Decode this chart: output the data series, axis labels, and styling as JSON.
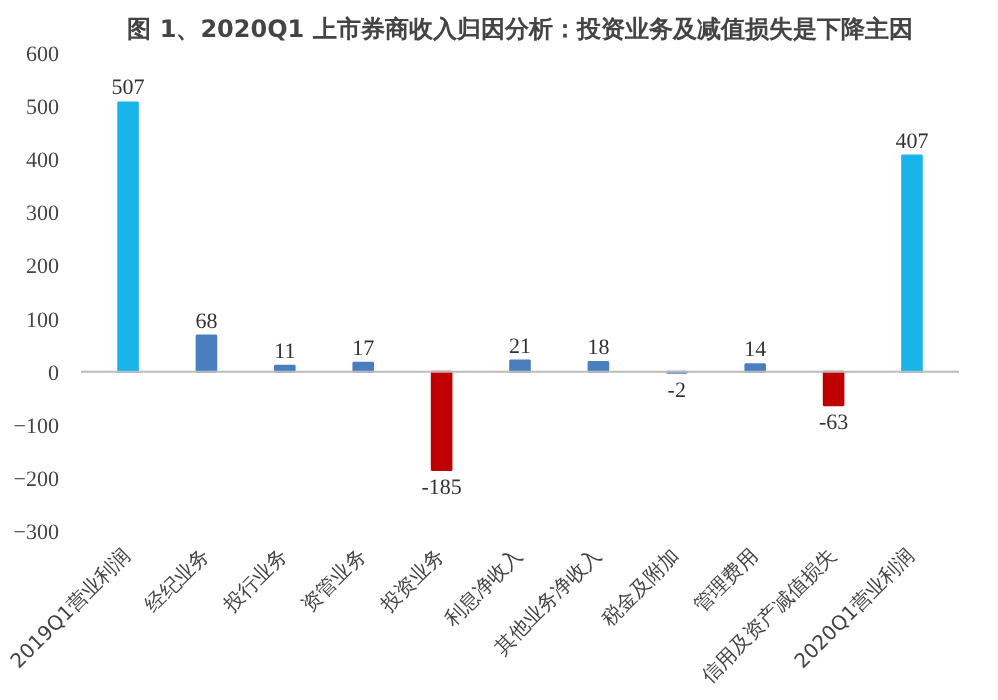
{
  "chart_data": {
    "type": "bar",
    "title": "图 1、2020Q1 上市券商收入归因分析：投资业务及减值损失是下降主因",
    "categories": [
      "2019Q1营业利润",
      "经纪业务",
      "投行业务",
      "资管业务",
      "投资业务",
      "利息净收入",
      "其他业务净收入",
      "税金及附加",
      "管理费用",
      "信用及资产减值损失",
      "2020Q1营业利润"
    ],
    "values": [
      507,
      68,
      11,
      17,
      -185,
      21,
      18,
      -2,
      14,
      -63,
      407
    ],
    "colors": [
      "#19b4ea",
      "#4a7fbf",
      "#4a7fbf",
      "#4a7fbf",
      "#c00000",
      "#4a7fbf",
      "#4a7fbf",
      "#4a7fbf",
      "#4a7fbf",
      "#c00000",
      "#19b4ea"
    ],
    "ylim": [
      -300,
      600
    ],
    "yticks": [
      -300,
      -200,
      -100,
      0,
      100,
      200,
      300,
      400,
      500,
      600
    ],
    "data_labels": true
  }
}
